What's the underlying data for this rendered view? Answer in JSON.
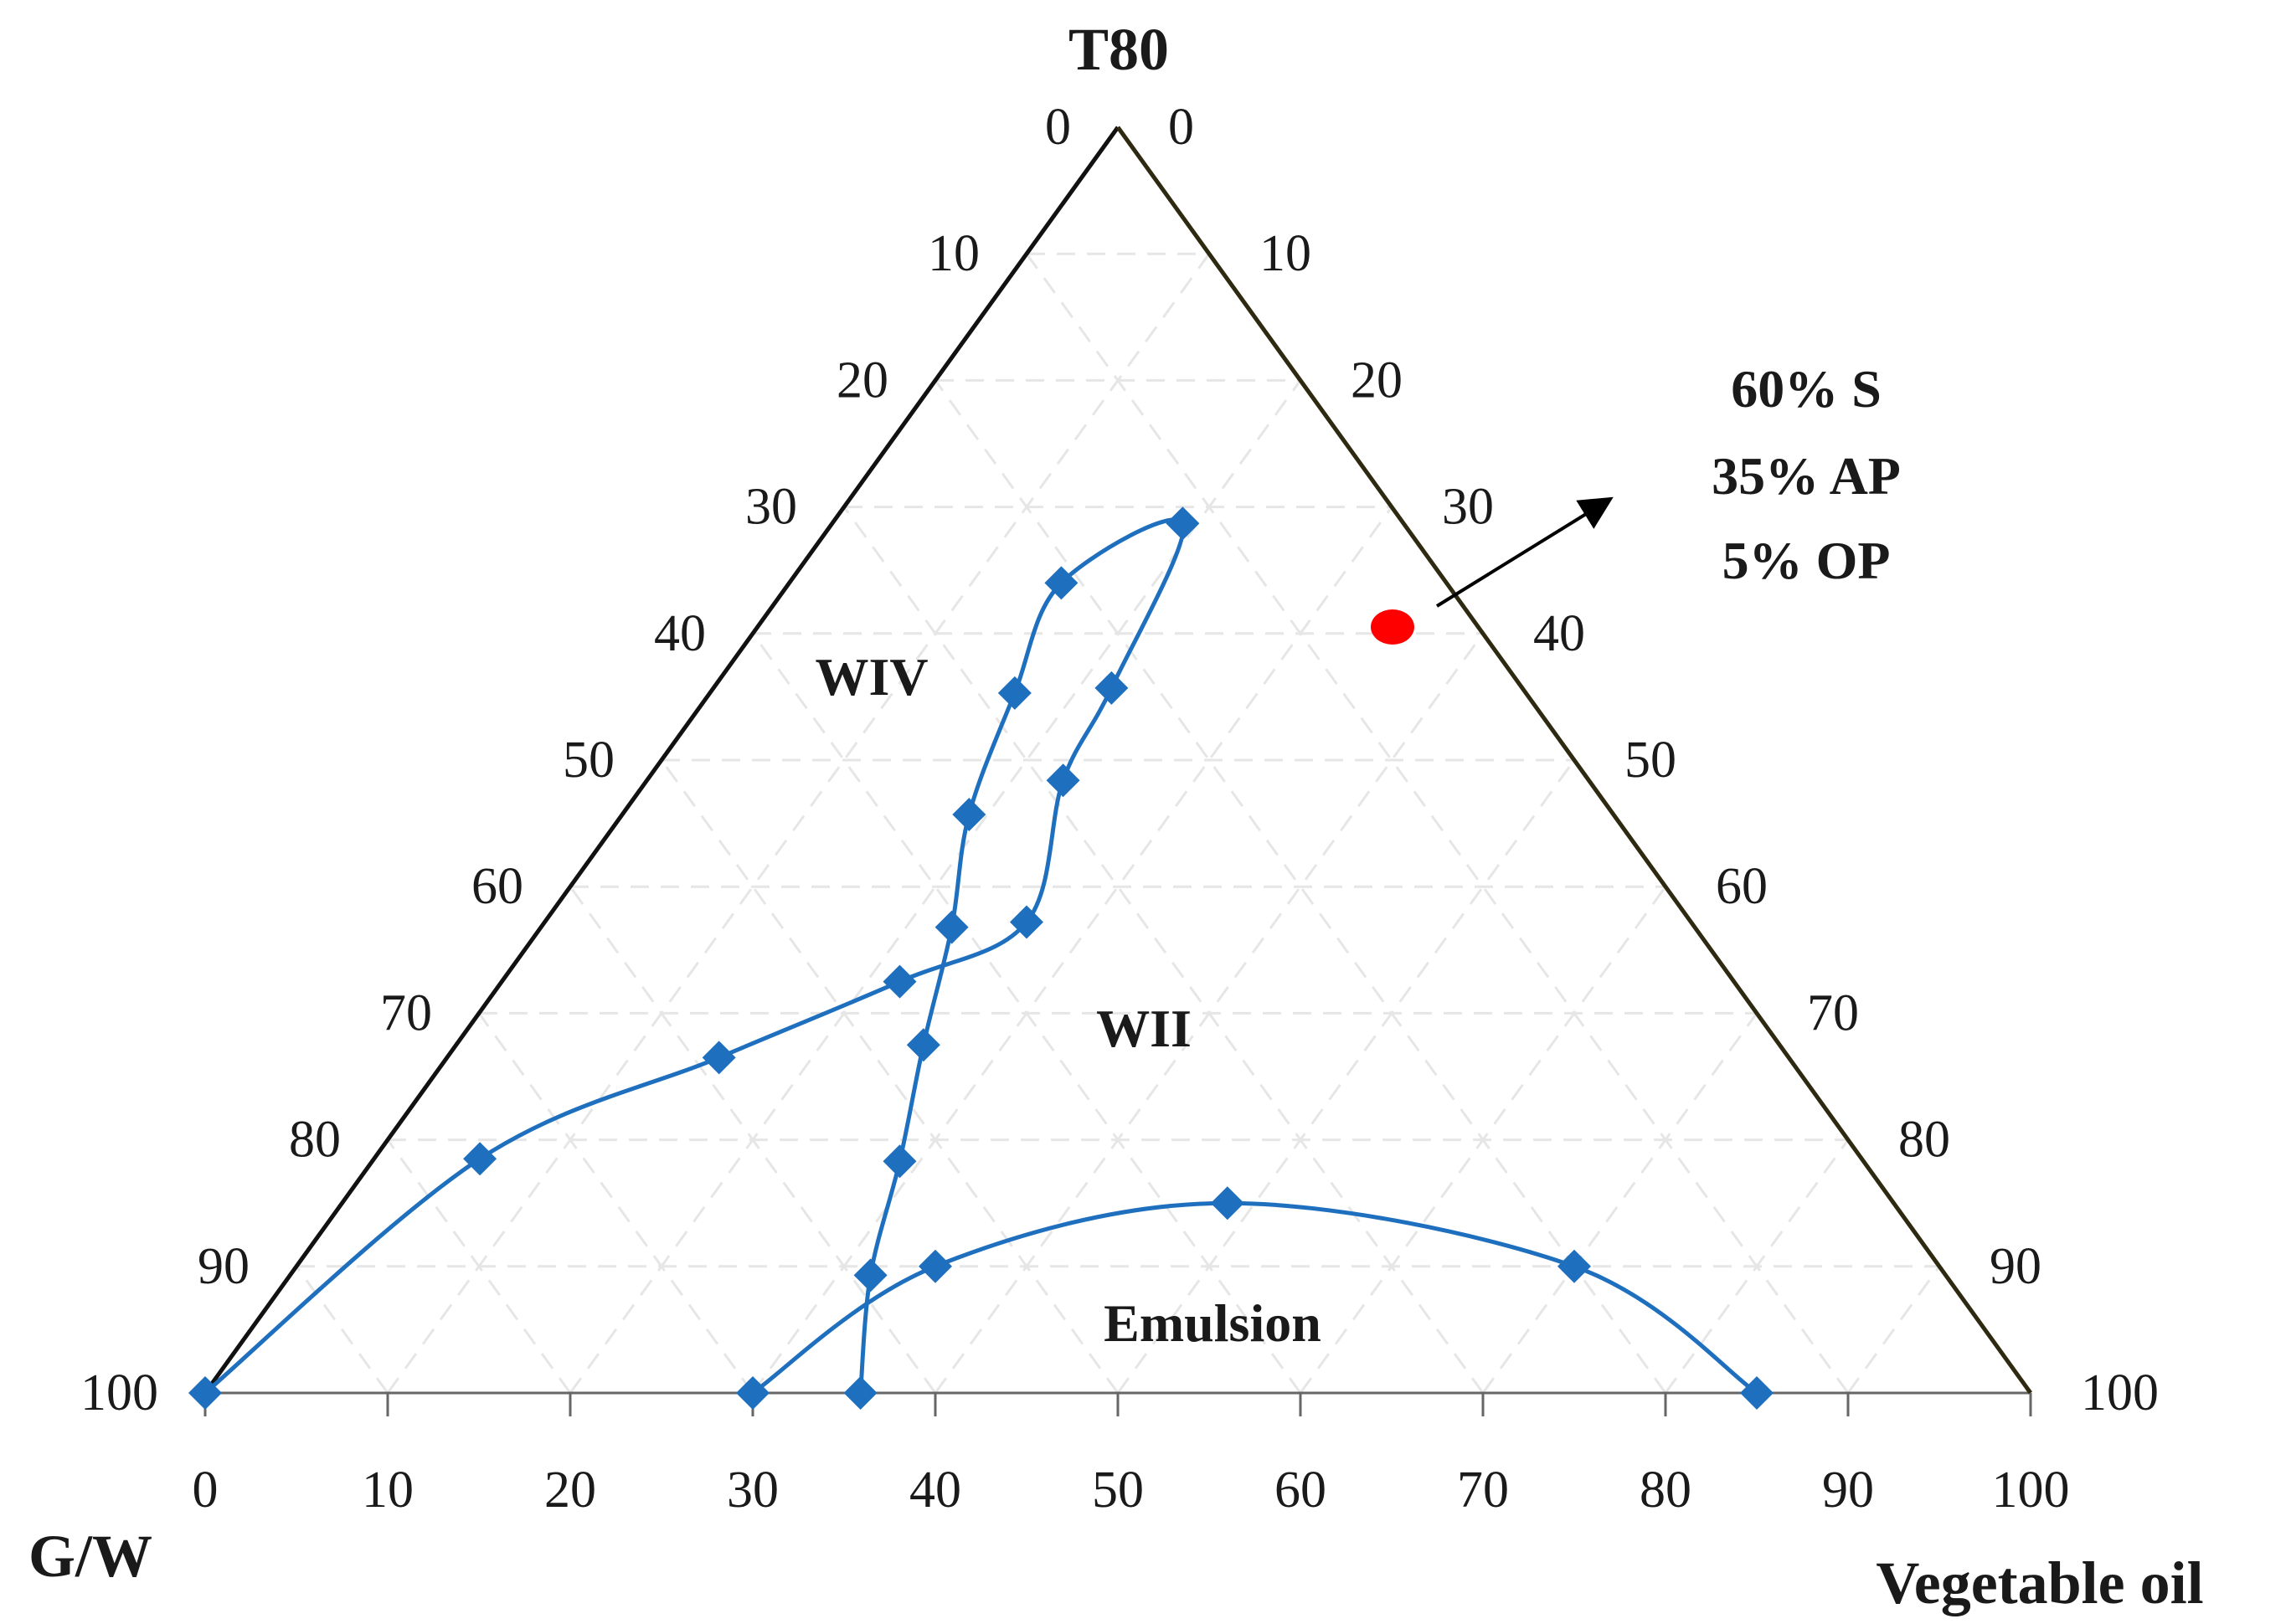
{
  "chart_data": {
    "type": "ternary",
    "axes": {
      "top": {
        "label": "T80"
      },
      "left": {
        "label": "G/W"
      },
      "right": {
        "label": "Vegetable oil"
      }
    },
    "ticks": {
      "left": [
        "0",
        "10",
        "20",
        "30",
        "40",
        "50",
        "60",
        "70",
        "80",
        "90",
        "100"
      ],
      "right": [
        "100",
        "90",
        "80",
        "70",
        "60",
        "50",
        "40",
        "30",
        "20",
        "10",
        "0"
      ],
      "bottom": [
        "0",
        "10",
        "20",
        "30",
        "40",
        "50",
        "60",
        "70",
        "80",
        "90",
        "100"
      ]
    },
    "grid": true,
    "series": [
      {
        "name": "boundary-upper",
        "color": "#1f6fbf",
        "points": [
          {
            "oil": 0,
            "t80": 0
          },
          {
            "oil": 5.8,
            "t80": 18.5
          },
          {
            "oil": 14.9,
            "t80": 26.5
          },
          {
            "oil": 21.8,
            "t80": 32.5
          },
          {
            "oil": 26.4,
            "t80": 37.2
          },
          {
            "oil": 22.8,
            "t80": 48.4
          },
          {
            "oil": 21.8,
            "t80": 55.7
          },
          {
            "oil": 19.2,
            "t80": 68.7
          },
          {
            "oil": 14.9,
            "t80": 64.0
          },
          {
            "oil": 16.7,
            "t80": 55.3
          },
          {
            "oil": 19.0,
            "t80": 45.7
          },
          {
            "oil": 22.5,
            "t80": 36.8
          },
          {
            "oil": 25.6,
            "t80": 27.5
          },
          {
            "oil": 28.9,
            "t80": 18.3
          },
          {
            "oil": 31.8,
            "t80": 9.3
          },
          {
            "oil": 35.9,
            "t80": 0
          }
        ]
      },
      {
        "name": "boundary-emulsion",
        "color": "#1f6fbf",
        "points": [
          {
            "oil": 30,
            "t80": 0
          },
          {
            "oil": 35,
            "t80": 10
          },
          {
            "oil": 48.5,
            "t80": 15
          },
          {
            "oil": 70,
            "t80": 10
          },
          {
            "oil": 85,
            "t80": 0
          }
        ]
      }
    ],
    "regions": [
      {
        "label": "WIV"
      },
      {
        "label": "WII"
      },
      {
        "label": "Emulsion"
      }
    ],
    "highlight_point": {
      "name": "selected-formulation",
      "color": "#ff0000",
      "annotation": [
        "60% S",
        "35% AP",
        "5% OP"
      ]
    }
  }
}
